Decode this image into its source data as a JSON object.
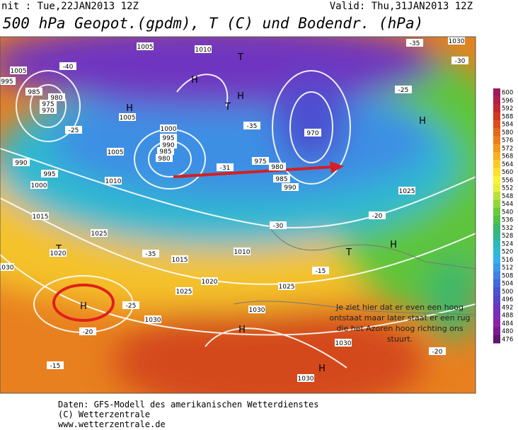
{
  "header": {
    "init": "nit : Tue,22JAN2013 12Z",
    "valid": "Valid: Thu,31JAN2013 12Z",
    "title": "500 hPa Geopot.(gpdm), T (C) und Bodendr. (hPa)"
  },
  "colorbar": {
    "ticks": [
      600,
      596,
      592,
      588,
      584,
      580,
      576,
      572,
      568,
      564,
      560,
      556,
      552,
      548,
      544,
      540,
      536,
      532,
      528,
      524,
      520,
      516,
      512,
      508,
      504,
      500,
      496,
      492,
      488,
      484,
      480,
      476
    ],
    "colors": [
      "#9b1d5a",
      "#b0204c",
      "#c2282e",
      "#d0381f",
      "#dc4f1c",
      "#e5661c",
      "#ec7d1d",
      "#f2981e",
      "#f7b01f",
      "#fbc926",
      "#fde02c",
      "#fdf238",
      "#e6f03a",
      "#b8e23a",
      "#8fd63a",
      "#6ccb3a",
      "#4fc24a",
      "#3db86a",
      "#34b58f",
      "#2fb8b4",
      "#2fbad4",
      "#35b2e8",
      "#3b9be8",
      "#3f82e4",
      "#4468dc",
      "#4b53d0",
      "#5a44c6",
      "#6c37bc",
      "#7d2db2",
      "#8c23a8",
      "#7a1a8e",
      "#5e1470"
    ]
  },
  "map_labels": [
    "1005",
    "1010",
    "1005",
    "995",
    "985",
    "980",
    "975",
    "970",
    "H",
    "H",
    "T",
    "H",
    "T",
    "1005",
    "1000",
    "995",
    "990",
    "985",
    "980",
    "975",
    "980",
    "985",
    "990",
    "970",
    "H",
    "H",
    "1030",
    "1005",
    "990",
    "995",
    "1000",
    "1010",
    "1015",
    "1025",
    "T",
    "1020",
    "1030",
    "1015",
    "1010",
    "1020",
    "1025",
    "1025",
    "1030",
    "1030",
    "H",
    "1030",
    "H",
    "1030",
    "H",
    "T",
    "H",
    "1025",
    "-35",
    "-25",
    "-20",
    "-15",
    "-20",
    "-15",
    "-20",
    "-30",
    "-35",
    "-30",
    "-25",
    "-40",
    "-25",
    "-31",
    "-35"
  ],
  "annotation": [
    "Je ziet hier dat er even een hoog",
    "ontstaat maar later staat er een rug",
    "die het Azoren hoog richting ons",
    "stuurt."
  ],
  "footer": [
    "Daten: GFS-Modell des amerikanischen Wetterdienstes",
    "(C) Wetterzentrale",
    "www.wetterzentrale.de"
  ]
}
